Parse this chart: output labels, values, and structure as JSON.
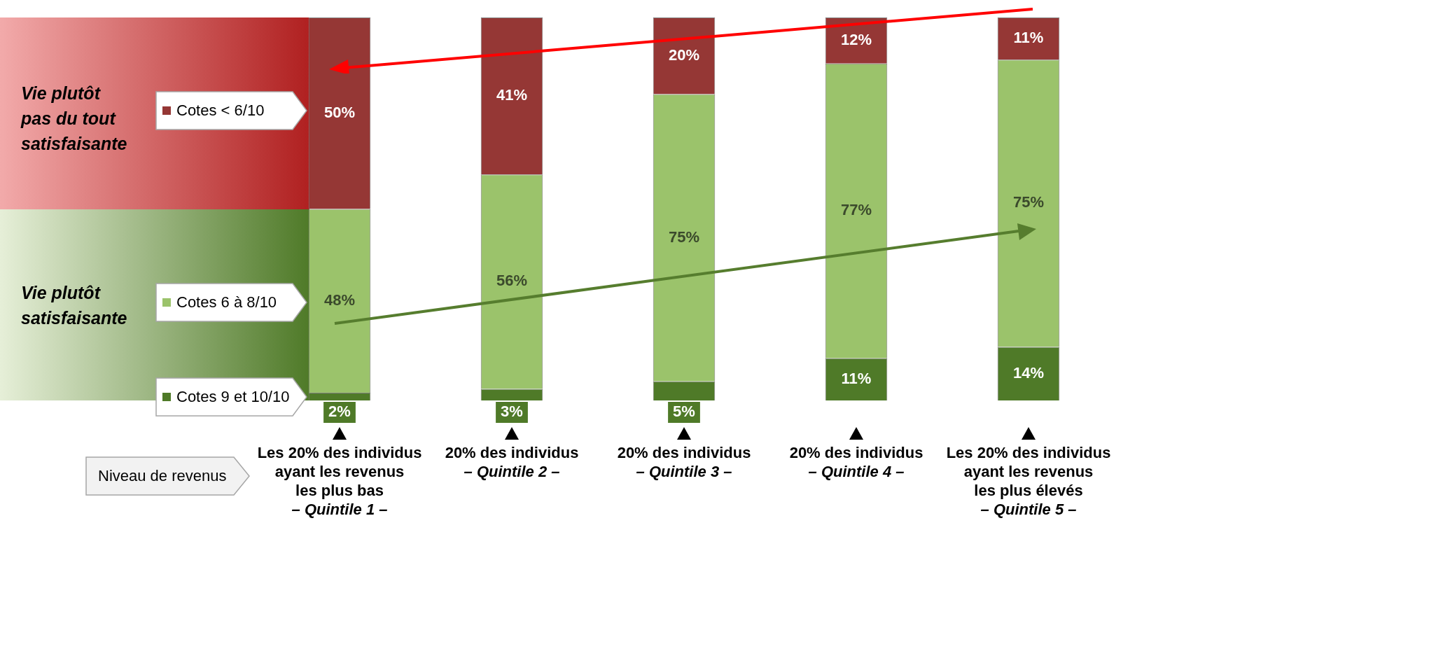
{
  "chart_data": {
    "type": "bar",
    "stacked": true,
    "legend": "left",
    "categories": [
      "Les 20% des individus\nayant les revenus\nles plus bas\n– Quintile 1 –",
      "20% des individus\n– Quintile 2 –",
      "20% des individus\n– Quintile 3 –",
      "20% des individus\n– Quintile 4 –",
      "Les 20% des individus\nayant les revenus\nles plus élevés\n– Quintile 5 –"
    ],
    "series": [
      {
        "name": "Cotes 9 et 10/10",
        "color": "#4f7a28",
        "values": [
          2,
          3,
          5,
          11,
          14
        ],
        "value_labels": [
          "2%",
          "3%",
          "5%",
          "11%",
          "14%"
        ]
      },
      {
        "name": "Cotes 6 à 8/10",
        "color": "#9bc36b",
        "values": [
          48,
          56,
          75,
          77,
          75
        ],
        "value_labels": [
          "48%",
          "56%",
          "75%",
          "77%",
          "75%"
        ]
      },
      {
        "name": "Cotes < 6/10",
        "color": "#953735",
        "values": [
          50,
          41,
          20,
          12,
          11
        ],
        "value_labels": [
          "50%",
          "41%",
          "20%",
          "12%",
          "11%"
        ]
      }
    ],
    "annotations": [
      "Vie plutôt\npas du tout\nsatisfaisante",
      "Vie plutôt\nsatisfaisante",
      "Niveau de revenus"
    ]
  }
}
